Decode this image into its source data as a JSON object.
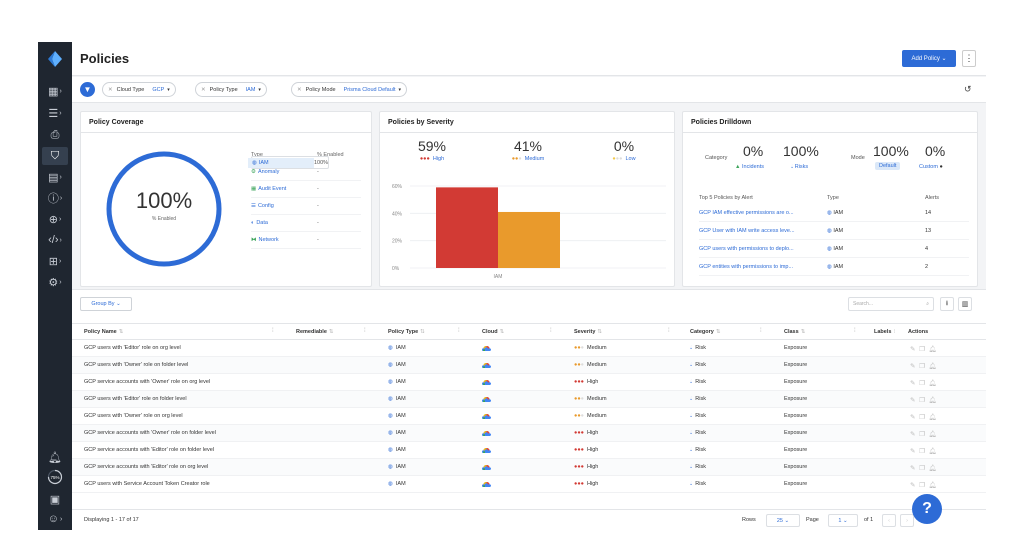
{
  "header": {
    "title": "Policies",
    "add_button": "Add Policy",
    "kebab": "⋮"
  },
  "filters": [
    {
      "label": "Cloud Type",
      "value": "GCP"
    },
    {
      "label": "Policy Type",
      "value": "IAM"
    },
    {
      "label": "Policy Mode",
      "value": "Prisma Cloud Default"
    }
  ],
  "coverage": {
    "title": "Policy Coverage",
    "percent": "100%",
    "percent_value": 1.0,
    "sub": "% Enabled",
    "col_type": "Type",
    "col_enabled": "% Enabled",
    "rows": [
      {
        "type": "Anomaly",
        "enabled": "-"
      },
      {
        "type": "Audit Event",
        "enabled": "-"
      },
      {
        "type": "Config",
        "enabled": "-"
      },
      {
        "type": "Data",
        "enabled": "-"
      },
      {
        "type": "IAM",
        "enabled": "100%"
      },
      {
        "type": "Network",
        "enabled": "-"
      }
    ]
  },
  "severity": {
    "title": "Policies by Severity",
    "items": [
      {
        "pct": "59%",
        "label": "High",
        "color": "#d23a34"
      },
      {
        "pct": "41%",
        "label": "Medium",
        "color": "#e99a2c"
      },
      {
        "pct": "0%",
        "label": "Low",
        "color": "#f2c94c"
      }
    ],
    "chart_data": {
      "type": "bar",
      "categories": [
        "IAM"
      ],
      "series": [
        {
          "name": "High",
          "values": [
            59
          ]
        },
        {
          "name": "Medium",
          "values": [
            41
          ]
        }
      ],
      "ylim": [
        0,
        60
      ],
      "yticks": [
        "0%",
        "20%",
        "40%",
        "60%"
      ]
    }
  },
  "drilldown": {
    "title": "Policies Drilldown",
    "category_label": "Category",
    "incidents_pct": "0%",
    "incidents_label": "Incidents",
    "risks_pct": "100%",
    "risks_label": "Risks",
    "mode_label": "Mode",
    "default_pct": "100%",
    "default_label": "Default",
    "custom_pct": "0%",
    "custom_label": "Custom",
    "th_policy": "Top 5 Policies by Alert",
    "th_type": "Type",
    "th_alerts": "Alerts",
    "rows": [
      {
        "policy": "GCP IAM effective permissions are o...",
        "type": "IAM",
        "alerts": "14"
      },
      {
        "policy": "GCP User with IAM write access leve...",
        "type": "IAM",
        "alerts": "13"
      },
      {
        "policy": "GCP users with permissions to deplo...",
        "type": "IAM",
        "alerts": "4"
      },
      {
        "policy": "GCP entities with permissions to imp...",
        "type": "IAM",
        "alerts": "2"
      }
    ]
  },
  "table": {
    "group_by": "Group By",
    "search_placeholder": "Search...",
    "columns": [
      "Policy Name",
      "Remediable",
      "Policy Type",
      "Cloud",
      "Severity",
      "Category",
      "Class",
      "Labels",
      "Actions"
    ],
    "rows": [
      {
        "name": "GCP users with 'Editor' role on org level",
        "type": "IAM",
        "severity": "Medium",
        "category": "Risk",
        "class": "Exposure"
      },
      {
        "name": "GCP users with 'Owner' role on folder level",
        "type": "IAM",
        "severity": "Medium",
        "category": "Risk",
        "class": "Exposure"
      },
      {
        "name": "GCP service accounts with 'Owner' role on org level",
        "type": "IAM",
        "severity": "High",
        "category": "Risk",
        "class": "Exposure"
      },
      {
        "name": "GCP users with 'Editor' role on folder level",
        "type": "IAM",
        "severity": "Medium",
        "category": "Risk",
        "class": "Exposure"
      },
      {
        "name": "GCP users with 'Owner' role on org level",
        "type": "IAM",
        "severity": "Medium",
        "category": "Risk",
        "class": "Exposure"
      },
      {
        "name": "GCP service accounts with 'Owner' role on folder level",
        "type": "IAM",
        "severity": "High",
        "category": "Risk",
        "class": "Exposure"
      },
      {
        "name": "GCP service accounts with 'Editor' role on folder level",
        "type": "IAM",
        "severity": "High",
        "category": "Risk",
        "class": "Exposure"
      },
      {
        "name": "GCP service accounts with 'Editor' role on org level",
        "type": "IAM",
        "severity": "High",
        "category": "Risk",
        "class": "Exposure"
      },
      {
        "name": "GCP users with Service Account Token Creator role",
        "type": "IAM",
        "severity": "High",
        "category": "Risk",
        "class": "Exposure"
      }
    ],
    "footer": {
      "displaying": "Displaying 1 - 17 of 17",
      "rows_label": "Rows",
      "rows_value": "25",
      "page_label": "Page",
      "page_value": "1",
      "of_label": "of 1"
    }
  },
  "sidebar": {
    "badge": "75%"
  },
  "help": "?"
}
